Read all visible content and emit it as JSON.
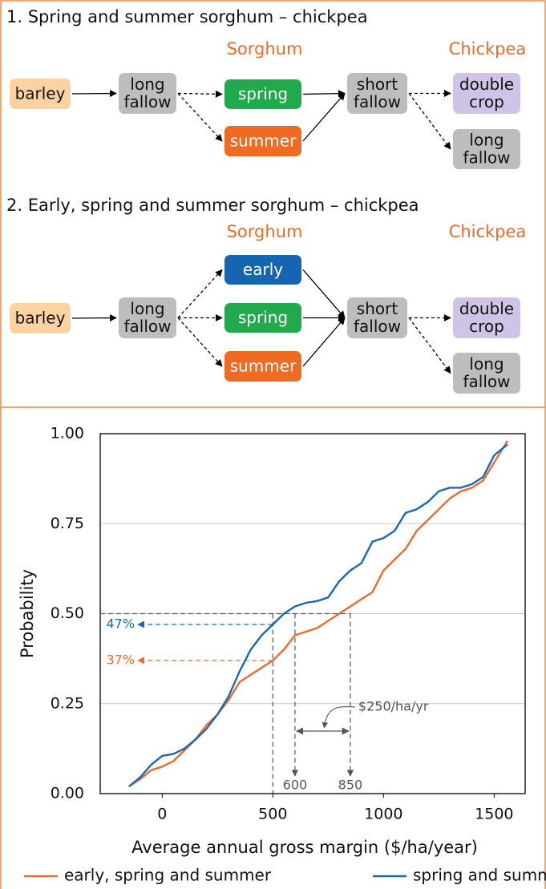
{
  "diagrams": [
    {
      "title": "1. Spring and summer sorghum – chickpea",
      "headers": [
        "Sorghum",
        "Chickpea"
      ],
      "nodes": [
        {
          "lines": [
            "barley"
          ],
          "color": "#fcd3a0"
        },
        {
          "lines": [
            "long",
            "fallow"
          ],
          "color": "#bdbdbd"
        },
        {
          "lines": [
            "spring"
          ],
          "color": "#22a94b"
        },
        {
          "lines": [
            "summer"
          ],
          "color": "#ef6a23"
        },
        {
          "lines": [
            "short",
            "fallow"
          ],
          "color": "#bdbdbd"
        },
        {
          "lines": [
            "double",
            "crop"
          ],
          "color": "#cfc3e8"
        },
        {
          "lines": [
            "long",
            "fallow"
          ],
          "color": "#bdbdbd"
        }
      ]
    },
    {
      "title": "2. Early, spring and summer sorghum – chickpea",
      "headers": [
        "Sorghum",
        "Chickpea"
      ],
      "nodes": [
        {
          "lines": [
            "barley"
          ],
          "color": "#fcd3a0"
        },
        {
          "lines": [
            "long",
            "fallow"
          ],
          "color": "#bdbdbd"
        },
        {
          "lines": [
            "early"
          ],
          "color": "#1565b0"
        },
        {
          "lines": [
            "spring"
          ],
          "color": "#22a94b"
        },
        {
          "lines": [
            "summer"
          ],
          "color": "#ef6a23"
        },
        {
          "lines": [
            "short",
            "fallow"
          ],
          "color": "#bdbdbd"
        },
        {
          "lines": [
            "double",
            "crop"
          ],
          "color": "#cfc3e8"
        },
        {
          "lines": [
            "long",
            "fallow"
          ],
          "color": "#bdbdbd"
        }
      ]
    }
  ],
  "chart_data": {
    "type": "line",
    "x_label": "Average annual gross margin ($/ha/year)",
    "y_label": "Probability",
    "x": [
      -150,
      -100,
      -50,
      0,
      50,
      100,
      150,
      200,
      250,
      300,
      350,
      400,
      450,
      500,
      550,
      600,
      650,
      700,
      750,
      800,
      850,
      900,
      950,
      1000,
      1050,
      1100,
      1150,
      1200,
      1250,
      1300,
      1350,
      1400,
      1450,
      1500,
      1560
    ],
    "series": [
      {
        "name": "early, spring and summer",
        "color": "#ef6a2d",
        "values": [
          0.02,
          0.04,
          0.065,
          0.075,
          0.09,
          0.12,
          0.15,
          0.19,
          0.22,
          0.26,
          0.31,
          0.33,
          0.35,
          0.37,
          0.4,
          0.44,
          0.45,
          0.46,
          0.48,
          0.5,
          0.52,
          0.54,
          0.56,
          0.62,
          0.65,
          0.68,
          0.73,
          0.76,
          0.79,
          0.82,
          0.84,
          0.85,
          0.87,
          0.92,
          0.98
        ]
      },
      {
        "name": "spring and summer",
        "color": "#1a68b0",
        "values": [
          0.02,
          0.045,
          0.08,
          0.105,
          0.11,
          0.125,
          0.15,
          0.18,
          0.22,
          0.27,
          0.34,
          0.4,
          0.44,
          0.47,
          0.5,
          0.52,
          0.53,
          0.535,
          0.545,
          0.59,
          0.62,
          0.64,
          0.7,
          0.71,
          0.73,
          0.78,
          0.79,
          0.81,
          0.84,
          0.85,
          0.85,
          0.86,
          0.88,
          0.94,
          0.97
        ]
      }
    ],
    "xlim": [
      -280,
      1640
    ],
    "ylim": [
      0,
      1
    ],
    "xticks": [
      0,
      500,
      1000,
      1500
    ],
    "yticks": [
      {
        "value": 0,
        "label": "0.00"
      },
      {
        "value": 0.25,
        "label": "0.25"
      },
      {
        "value": 0.5,
        "label": "0.50"
      },
      {
        "value": 0.75,
        "label": "0.75"
      },
      {
        "value": 1,
        "label": "1.00"
      }
    ],
    "grid": true,
    "legend": "bottom",
    "reference_probability": 0.5,
    "read_x": 500,
    "read_offs": [
      {
        "value": 0.47,
        "label": "47%",
        "color": "#1a68b0"
      },
      {
        "value": 0.37,
        "label": "37%",
        "color": "#ef6a2d"
      }
    ],
    "x_markers": [
      600,
      850
    ],
    "difference": {
      "value": 250,
      "label": "$250/ha/yr"
    }
  }
}
